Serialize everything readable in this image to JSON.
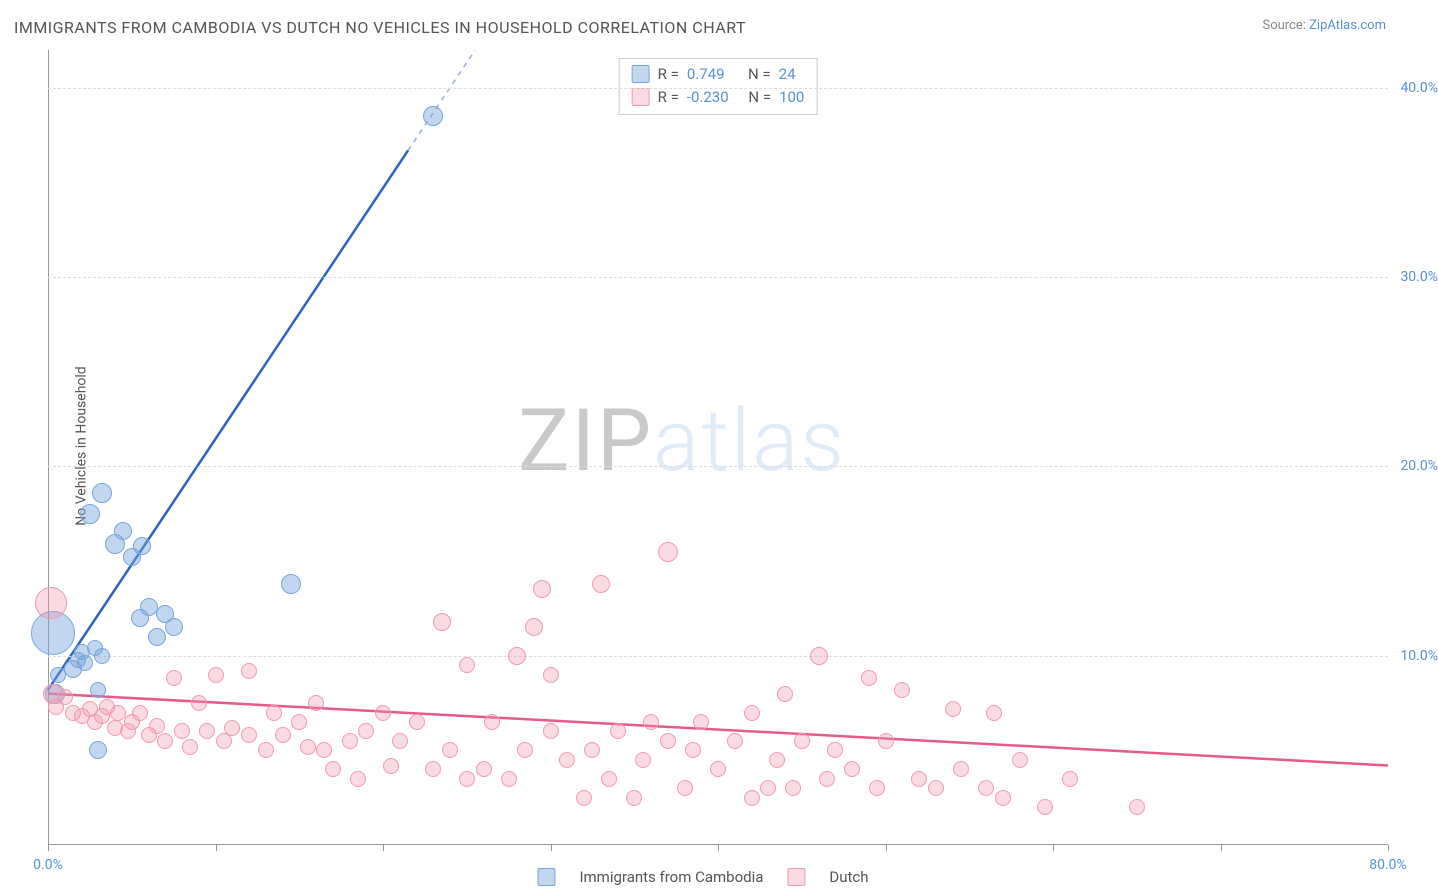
{
  "title": "IMMIGRANTS FROM CAMBODIA VS DUTCH NO VEHICLES IN HOUSEHOLD CORRELATION CHART",
  "source_label": "Source: ",
  "source_link": "ZipAtlas.com",
  "ylabel": "No Vehicles in Household",
  "watermark_zip": "ZIP",
  "watermark_atlas": "atlas",
  "chart": {
    "type": "scatter",
    "xlim": [
      0,
      80
    ],
    "ylim": [
      0,
      42
    ],
    "yticks": [
      10,
      20,
      30,
      40
    ],
    "ytick_labels": [
      "10.0%",
      "20.0%",
      "30.0%",
      "40.0%"
    ],
    "xticks": [
      0,
      10,
      20,
      30,
      40,
      50,
      60,
      70,
      80
    ],
    "xlabel_min": "0.0%",
    "xlabel_max": "80.0%",
    "background_color": "#ffffff",
    "grid_color": "#dddddd",
    "series": [
      {
        "name": "Immigrants from Cambodia",
        "color_fill": "rgba(120,165,220,0.45)",
        "color_stroke": "#7aa6dd",
        "R": "0.749",
        "N": "24",
        "trend": {
          "x1": 0,
          "y1": 8.2,
          "x2": 25.5,
          "y2": 42,
          "solid_until_x": 21.5,
          "color": "#2c63c4"
        },
        "points": [
          {
            "x": 0.3,
            "y": 11.2,
            "r": 22
          },
          {
            "x": 0.4,
            "y": 8.0,
            "r": 10
          },
          {
            "x": 0.6,
            "y": 9.0,
            "r": 8
          },
          {
            "x": 1.5,
            "y": 9.3,
            "r": 9
          },
          {
            "x": 1.8,
            "y": 9.8,
            "r": 8
          },
          {
            "x": 2.0,
            "y": 10.2,
            "r": 8
          },
          {
            "x": 2.2,
            "y": 9.6,
            "r": 8
          },
          {
            "x": 2.8,
            "y": 10.4,
            "r": 8
          },
          {
            "x": 3.0,
            "y": 8.2,
            "r": 8
          },
          {
            "x": 3.2,
            "y": 10.0,
            "r": 8
          },
          {
            "x": 2.5,
            "y": 17.5,
            "r": 10
          },
          {
            "x": 3.2,
            "y": 18.6,
            "r": 10
          },
          {
            "x": 4.0,
            "y": 15.9,
            "r": 10
          },
          {
            "x": 4.5,
            "y": 16.6,
            "r": 9
          },
          {
            "x": 5.0,
            "y": 15.2,
            "r": 9
          },
          {
            "x": 5.6,
            "y": 15.8,
            "r": 9
          },
          {
            "x": 5.5,
            "y": 12.0,
            "r": 9
          },
          {
            "x": 6.0,
            "y": 12.6,
            "r": 9
          },
          {
            "x": 6.5,
            "y": 11.0,
            "r": 9
          },
          {
            "x": 7.0,
            "y": 12.2,
            "r": 9
          },
          {
            "x": 7.5,
            "y": 11.5,
            "r": 9
          },
          {
            "x": 14.5,
            "y": 13.8,
            "r": 10
          },
          {
            "x": 3.0,
            "y": 5.0,
            "r": 9
          },
          {
            "x": 23.0,
            "y": 38.5,
            "r": 10
          }
        ]
      },
      {
        "name": "Dutch",
        "color_fill": "rgba(240,150,175,0.35)",
        "color_stroke": "#f19ab2",
        "R": "-0.230",
        "N": "100",
        "trend": {
          "x1": 0,
          "y1": 8.0,
          "x2": 80,
          "y2": 4.2,
          "color": "#e65a8a"
        },
        "points": [
          {
            "x": 0.2,
            "y": 12.8,
            "r": 16
          },
          {
            "x": 0.3,
            "y": 8.0,
            "r": 10
          },
          {
            "x": 0.5,
            "y": 7.3,
            "r": 8
          },
          {
            "x": 1.0,
            "y": 7.8,
            "r": 8
          },
          {
            "x": 1.5,
            "y": 7.0,
            "r": 8
          },
          {
            "x": 2.0,
            "y": 6.8,
            "r": 8
          },
          {
            "x": 2.5,
            "y": 7.2,
            "r": 8
          },
          {
            "x": 2.8,
            "y": 6.5,
            "r": 8
          },
          {
            "x": 3.2,
            "y": 6.8,
            "r": 8
          },
          {
            "x": 3.5,
            "y": 7.3,
            "r": 8
          },
          {
            "x": 4.0,
            "y": 6.2,
            "r": 8
          },
          {
            "x": 4.2,
            "y": 7.0,
            "r": 8
          },
          {
            "x": 4.8,
            "y": 6.0,
            "r": 8
          },
          {
            "x": 5.0,
            "y": 6.5,
            "r": 8
          },
          {
            "x": 5.5,
            "y": 7.0,
            "r": 8
          },
          {
            "x": 6.0,
            "y": 5.8,
            "r": 8
          },
          {
            "x": 6.5,
            "y": 6.3,
            "r": 8
          },
          {
            "x": 7.0,
            "y": 5.5,
            "r": 8
          },
          {
            "x": 7.5,
            "y": 8.8,
            "r": 8
          },
          {
            "x": 8.0,
            "y": 6.0,
            "r": 8
          },
          {
            "x": 8.5,
            "y": 5.2,
            "r": 8
          },
          {
            "x": 9.0,
            "y": 7.5,
            "r": 8
          },
          {
            "x": 9.5,
            "y": 6.0,
            "r": 8
          },
          {
            "x": 10.0,
            "y": 9.0,
            "r": 8
          },
          {
            "x": 10.5,
            "y": 5.5,
            "r": 8
          },
          {
            "x": 11.0,
            "y": 6.2,
            "r": 8
          },
          {
            "x": 12.0,
            "y": 5.8,
            "r": 8
          },
          {
            "x": 12.0,
            "y": 9.2,
            "r": 8
          },
          {
            "x": 13.0,
            "y": 5.0,
            "r": 8
          },
          {
            "x": 13.5,
            "y": 7.0,
            "r": 8
          },
          {
            "x": 14.0,
            "y": 5.8,
            "r": 8
          },
          {
            "x": 15.0,
            "y": 6.5,
            "r": 8
          },
          {
            "x": 15.5,
            "y": 5.2,
            "r": 8
          },
          {
            "x": 16.0,
            "y": 7.5,
            "r": 8
          },
          {
            "x": 16.5,
            "y": 5.0,
            "r": 8
          },
          {
            "x": 17.0,
            "y": 4.0,
            "r": 8
          },
          {
            "x": 18.0,
            "y": 5.5,
            "r": 8
          },
          {
            "x": 18.5,
            "y": 3.5,
            "r": 8
          },
          {
            "x": 19.0,
            "y": 6.0,
            "r": 8
          },
          {
            "x": 20.0,
            "y": 7.0,
            "r": 8
          },
          {
            "x": 20.5,
            "y": 4.2,
            "r": 8
          },
          {
            "x": 21.0,
            "y": 5.5,
            "r": 8
          },
          {
            "x": 22.0,
            "y": 6.5,
            "r": 8
          },
          {
            "x": 23.0,
            "y": 4.0,
            "r": 8
          },
          {
            "x": 23.5,
            "y": 11.8,
            "r": 9
          },
          {
            "x": 24.0,
            "y": 5.0,
            "r": 8
          },
          {
            "x": 25.0,
            "y": 3.5,
            "r": 8
          },
          {
            "x": 25.0,
            "y": 9.5,
            "r": 8
          },
          {
            "x": 26.0,
            "y": 4.0,
            "r": 8
          },
          {
            "x": 26.5,
            "y": 6.5,
            "r": 8
          },
          {
            "x": 27.5,
            "y": 3.5,
            "r": 8
          },
          {
            "x": 28.0,
            "y": 10.0,
            "r": 9
          },
          {
            "x": 28.5,
            "y": 5.0,
            "r": 8
          },
          {
            "x": 29.0,
            "y": 11.5,
            "r": 9
          },
          {
            "x": 29.5,
            "y": 13.5,
            "r": 9
          },
          {
            "x": 30.0,
            "y": 6.0,
            "r": 8
          },
          {
            "x": 30.0,
            "y": 9.0,
            "r": 8
          },
          {
            "x": 31.0,
            "y": 4.5,
            "r": 8
          },
          {
            "x": 32.0,
            "y": 2.5,
            "r": 8
          },
          {
            "x": 32.5,
            "y": 5.0,
            "r": 8
          },
          {
            "x": 33.0,
            "y": 13.8,
            "r": 9
          },
          {
            "x": 33.5,
            "y": 3.5,
            "r": 8
          },
          {
            "x": 34.0,
            "y": 6.0,
            "r": 8
          },
          {
            "x": 35.0,
            "y": 2.5,
            "r": 8
          },
          {
            "x": 35.5,
            "y": 4.5,
            "r": 8
          },
          {
            "x": 36.0,
            "y": 6.5,
            "r": 8
          },
          {
            "x": 37.0,
            "y": 5.5,
            "r": 8
          },
          {
            "x": 37.0,
            "y": 15.5,
            "r": 10
          },
          {
            "x": 38.0,
            "y": 3.0,
            "r": 8
          },
          {
            "x": 38.5,
            "y": 5.0,
            "r": 8
          },
          {
            "x": 39.0,
            "y": 6.5,
            "r": 8
          },
          {
            "x": 40.0,
            "y": 4.0,
            "r": 8
          },
          {
            "x": 41.0,
            "y": 5.5,
            "r": 8
          },
          {
            "x": 42.0,
            "y": 7.0,
            "r": 8
          },
          {
            "x": 42.0,
            "y": 2.5,
            "r": 8
          },
          {
            "x": 43.0,
            "y": 3.0,
            "r": 8
          },
          {
            "x": 43.5,
            "y": 4.5,
            "r": 8
          },
          {
            "x": 44.0,
            "y": 8.0,
            "r": 8
          },
          {
            "x": 44.5,
            "y": 3.0,
            "r": 8
          },
          {
            "x": 45.0,
            "y": 5.5,
            "r": 8
          },
          {
            "x": 46.0,
            "y": 10.0,
            "r": 9
          },
          {
            "x": 46.5,
            "y": 3.5,
            "r": 8
          },
          {
            "x": 47.0,
            "y": 5.0,
            "r": 8
          },
          {
            "x": 48.0,
            "y": 4.0,
            "r": 8
          },
          {
            "x": 49.0,
            "y": 8.8,
            "r": 8
          },
          {
            "x": 49.5,
            "y": 3.0,
            "r": 8
          },
          {
            "x": 50.0,
            "y": 5.5,
            "r": 8
          },
          {
            "x": 51.0,
            "y": 8.2,
            "r": 8
          },
          {
            "x": 52.0,
            "y": 3.5,
            "r": 8
          },
          {
            "x": 53.0,
            "y": 3.0,
            "r": 8
          },
          {
            "x": 54.0,
            "y": 7.2,
            "r": 8
          },
          {
            "x": 54.5,
            "y": 4.0,
            "r": 8
          },
          {
            "x": 56.0,
            "y": 3.0,
            "r": 8
          },
          {
            "x": 56.5,
            "y": 7.0,
            "r": 8
          },
          {
            "x": 57.0,
            "y": 2.5,
            "r": 8
          },
          {
            "x": 58.0,
            "y": 4.5,
            "r": 8
          },
          {
            "x": 59.5,
            "y": 2.0,
            "r": 8
          },
          {
            "x": 61.0,
            "y": 3.5,
            "r": 8
          },
          {
            "x": 65.0,
            "y": 2.0,
            "r": 8
          }
        ]
      }
    ],
    "legend": {
      "r_label": "R  =",
      "n_label": "N  ="
    },
    "bottom_legend": [
      {
        "swatch": "a",
        "label": "Immigrants from Cambodia"
      },
      {
        "swatch": "b",
        "label": "Dutch"
      }
    ]
  }
}
